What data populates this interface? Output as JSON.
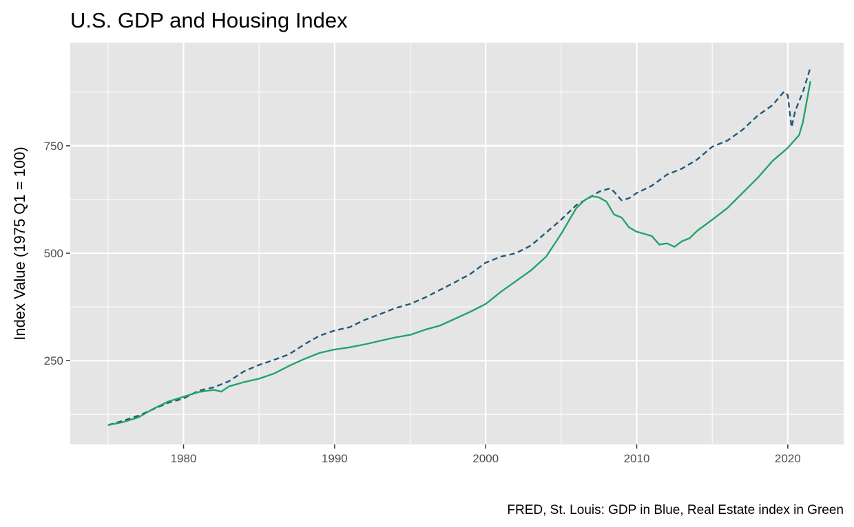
{
  "chart_data": {
    "type": "line",
    "title": "U.S. GDP and Housing Index",
    "xlabel": "",
    "ylabel": "Index Value (1975 Q1 = 100)",
    "caption": "FRED, St. Louis: GDP in Blue, Real Estate index in Green",
    "xlim": [
      1972.5,
      2023.7
    ],
    "ylim": [
      55,
      990
    ],
    "x_ticks": [
      1980,
      1990,
      2000,
      2010,
      2020
    ],
    "y_ticks": [
      250,
      500,
      750
    ],
    "grid": true,
    "legend": "none",
    "colors": {
      "panel": "#e5e5e5",
      "grid": "#ffffff",
      "gdp": "#1f5a7a",
      "housing": "#22a36b"
    },
    "series": [
      {
        "key": "gdp",
        "style": "dashed",
        "points": [
          [
            1975.0,
            100
          ],
          [
            1976.0,
            110
          ],
          [
            1977.0,
            122
          ],
          [
            1978.0,
            137
          ],
          [
            1979.0,
            152
          ],
          [
            1980.0,
            162
          ],
          [
            1981.0,
            180
          ],
          [
            1982.0,
            188
          ],
          [
            1983.0,
            202
          ],
          [
            1984.0,
            225
          ],
          [
            1985.0,
            240
          ],
          [
            1986.0,
            252
          ],
          [
            1987.0,
            265
          ],
          [
            1988.0,
            288
          ],
          [
            1989.0,
            308
          ],
          [
            1990.0,
            320
          ],
          [
            1991.0,
            328
          ],
          [
            1992.0,
            345
          ],
          [
            1993.0,
            358
          ],
          [
            1994.0,
            372
          ],
          [
            1995.0,
            382
          ],
          [
            1996.0,
            397
          ],
          [
            1997.0,
            415
          ],
          [
            1998.0,
            433
          ],
          [
            1999.0,
            452
          ],
          [
            2000.0,
            478
          ],
          [
            2001.0,
            492
          ],
          [
            2002.0,
            500
          ],
          [
            2003.0,
            518
          ],
          [
            2004.0,
            548
          ],
          [
            2005.0,
            578
          ],
          [
            2006.0,
            612
          ],
          [
            2007.0,
            632
          ],
          [
            2007.5,
            643
          ],
          [
            2008.25,
            651
          ],
          [
            2008.5,
            643
          ],
          [
            2009.0,
            623
          ],
          [
            2009.5,
            628
          ],
          [
            2010.0,
            640
          ],
          [
            2011.0,
            657
          ],
          [
            2012.0,
            683
          ],
          [
            2013.0,
            697
          ],
          [
            2014.0,
            718
          ],
          [
            2015.0,
            748
          ],
          [
            2016.0,
            762
          ],
          [
            2017.0,
            787
          ],
          [
            2018.0,
            820
          ],
          [
            2019.0,
            845
          ],
          [
            2019.75,
            876
          ],
          [
            2020.0,
            868
          ],
          [
            2020.25,
            793
          ],
          [
            2020.5,
            832
          ],
          [
            2021.0,
            875
          ],
          [
            2021.5,
            932
          ]
        ]
      },
      {
        "key": "housing",
        "style": "solid",
        "points": [
          [
            1975.0,
            100
          ],
          [
            1976.0,
            107
          ],
          [
            1977.0,
            118
          ],
          [
            1978.0,
            138
          ],
          [
            1979.0,
            155
          ],
          [
            1980.0,
            166
          ],
          [
            1981.0,
            177
          ],
          [
            1982.0,
            182
          ],
          [
            1982.5,
            178
          ],
          [
            1983.0,
            190
          ],
          [
            1984.0,
            200
          ],
          [
            1985.0,
            208
          ],
          [
            1986.0,
            220
          ],
          [
            1987.0,
            238
          ],
          [
            1988.0,
            254
          ],
          [
            1989.0,
            268
          ],
          [
            1990.0,
            276
          ],
          [
            1991.0,
            281
          ],
          [
            1992.0,
            288
          ],
          [
            1993.0,
            296
          ],
          [
            1994.0,
            304
          ],
          [
            1995.0,
            310
          ],
          [
            1996.0,
            322
          ],
          [
            1997.0,
            332
          ],
          [
            1998.0,
            348
          ],
          [
            1999.0,
            364
          ],
          [
            2000.0,
            382
          ],
          [
            2001.0,
            410
          ],
          [
            2002.0,
            435
          ],
          [
            2003.0,
            460
          ],
          [
            2004.0,
            492
          ],
          [
            2005.0,
            545
          ],
          [
            2006.0,
            605
          ],
          [
            2006.5,
            622
          ],
          [
            2007.0,
            633
          ],
          [
            2007.5,
            630
          ],
          [
            2008.0,
            620
          ],
          [
            2008.5,
            590
          ],
          [
            2009.0,
            583
          ],
          [
            2009.5,
            560
          ],
          [
            2010.0,
            550
          ],
          [
            2010.5,
            545
          ],
          [
            2011.0,
            540
          ],
          [
            2011.5,
            520
          ],
          [
            2012.0,
            523
          ],
          [
            2012.5,
            515
          ],
          [
            2013.0,
            528
          ],
          [
            2013.5,
            535
          ],
          [
            2014.0,
            552
          ],
          [
            2015.0,
            578
          ],
          [
            2016.0,
            605
          ],
          [
            2017.0,
            640
          ],
          [
            2018.0,
            675
          ],
          [
            2019.0,
            715
          ],
          [
            2020.0,
            745
          ],
          [
            2020.75,
            775
          ],
          [
            2021.0,
            805
          ],
          [
            2021.5,
            900
          ]
        ]
      }
    ]
  }
}
